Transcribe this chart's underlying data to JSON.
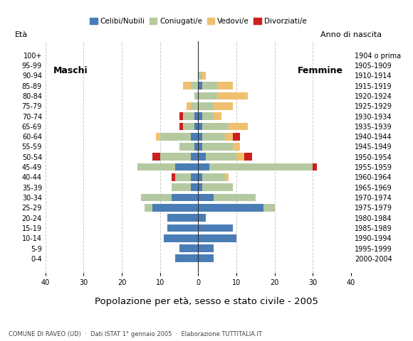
{
  "age_groups": [
    "0-4",
    "5-9",
    "10-14",
    "15-19",
    "20-24",
    "25-29",
    "30-34",
    "35-39",
    "40-44",
    "45-49",
    "50-54",
    "55-59",
    "60-64",
    "65-69",
    "70-74",
    "75-79",
    "80-84",
    "85-89",
    "90-94",
    "95-99",
    "100+"
  ],
  "birth_years": [
    "2000-2004",
    "1995-1999",
    "1990-1994",
    "1985-1989",
    "1980-1984",
    "1975-1979",
    "1970-1974",
    "1965-1969",
    "1960-1964",
    "1955-1959",
    "1950-1954",
    "1945-1949",
    "1940-1944",
    "1935-1939",
    "1930-1934",
    "1925-1929",
    "1920-1924",
    "1915-1919",
    "1910-1914",
    "1905-1909",
    "1904 o prima"
  ],
  "colors": {
    "celibi": "#4a7db5",
    "coniugati": "#b5c9a0",
    "vedovi": "#f0c070",
    "divorziati": "#cc2020"
  },
  "males": {
    "celibi": [
      6,
      5,
      9,
      8,
      8,
      12,
      7,
      2,
      2,
      6,
      2,
      1,
      2,
      1,
      1,
      0,
      0,
      0,
      0,
      0,
      0
    ],
    "coniugati": [
      0,
      0,
      0,
      0,
      0,
      2,
      8,
      5,
      4,
      10,
      8,
      4,
      8,
      3,
      3,
      2,
      1,
      2,
      0,
      0,
      0
    ],
    "vedovi": [
      0,
      0,
      0,
      0,
      0,
      0,
      0,
      0,
      0,
      0,
      0,
      0,
      1,
      0,
      0,
      1,
      0,
      2,
      0,
      0,
      0
    ],
    "divorziati": [
      0,
      0,
      0,
      0,
      0,
      0,
      0,
      0,
      1,
      0,
      2,
      0,
      0,
      1,
      1,
      0,
      0,
      0,
      0,
      0,
      0
    ]
  },
  "females": {
    "celibi": [
      4,
      4,
      10,
      9,
      2,
      17,
      4,
      1,
      1,
      3,
      2,
      1,
      1,
      1,
      1,
      0,
      0,
      1,
      0,
      0,
      0
    ],
    "coniugati": [
      0,
      0,
      0,
      0,
      0,
      3,
      11,
      8,
      6,
      27,
      8,
      8,
      6,
      7,
      3,
      4,
      5,
      4,
      1,
      0,
      0
    ],
    "vedovi": [
      0,
      0,
      0,
      0,
      0,
      0,
      0,
      0,
      1,
      0,
      2,
      2,
      2,
      5,
      2,
      5,
      8,
      4,
      1,
      0,
      0
    ],
    "divorziati": [
      0,
      0,
      0,
      0,
      0,
      0,
      0,
      0,
      0,
      1,
      2,
      0,
      2,
      0,
      0,
      0,
      0,
      0,
      0,
      0,
      0
    ]
  },
  "title": "Popolazione per età, sesso e stato civile - 2005",
  "subtitle": "COMUNE DI RAVEO (UD)  ·  Dati ISTAT 1° gennaio 2005  ·  Elaborazione TUTTITALIA.IT",
  "xlabel_left": "Maschi",
  "xlabel_right": "Femmine",
  "ylabel_left": "Età",
  "ylabel_right": "Anno di nascita",
  "xlim": 40,
  "bg_color": "#ffffff",
  "grid_color": "#cccccc",
  "legend_labels": [
    "Celibi/Nubili",
    "Coniugati/e",
    "Vedovi/e",
    "Divorziati/e"
  ]
}
